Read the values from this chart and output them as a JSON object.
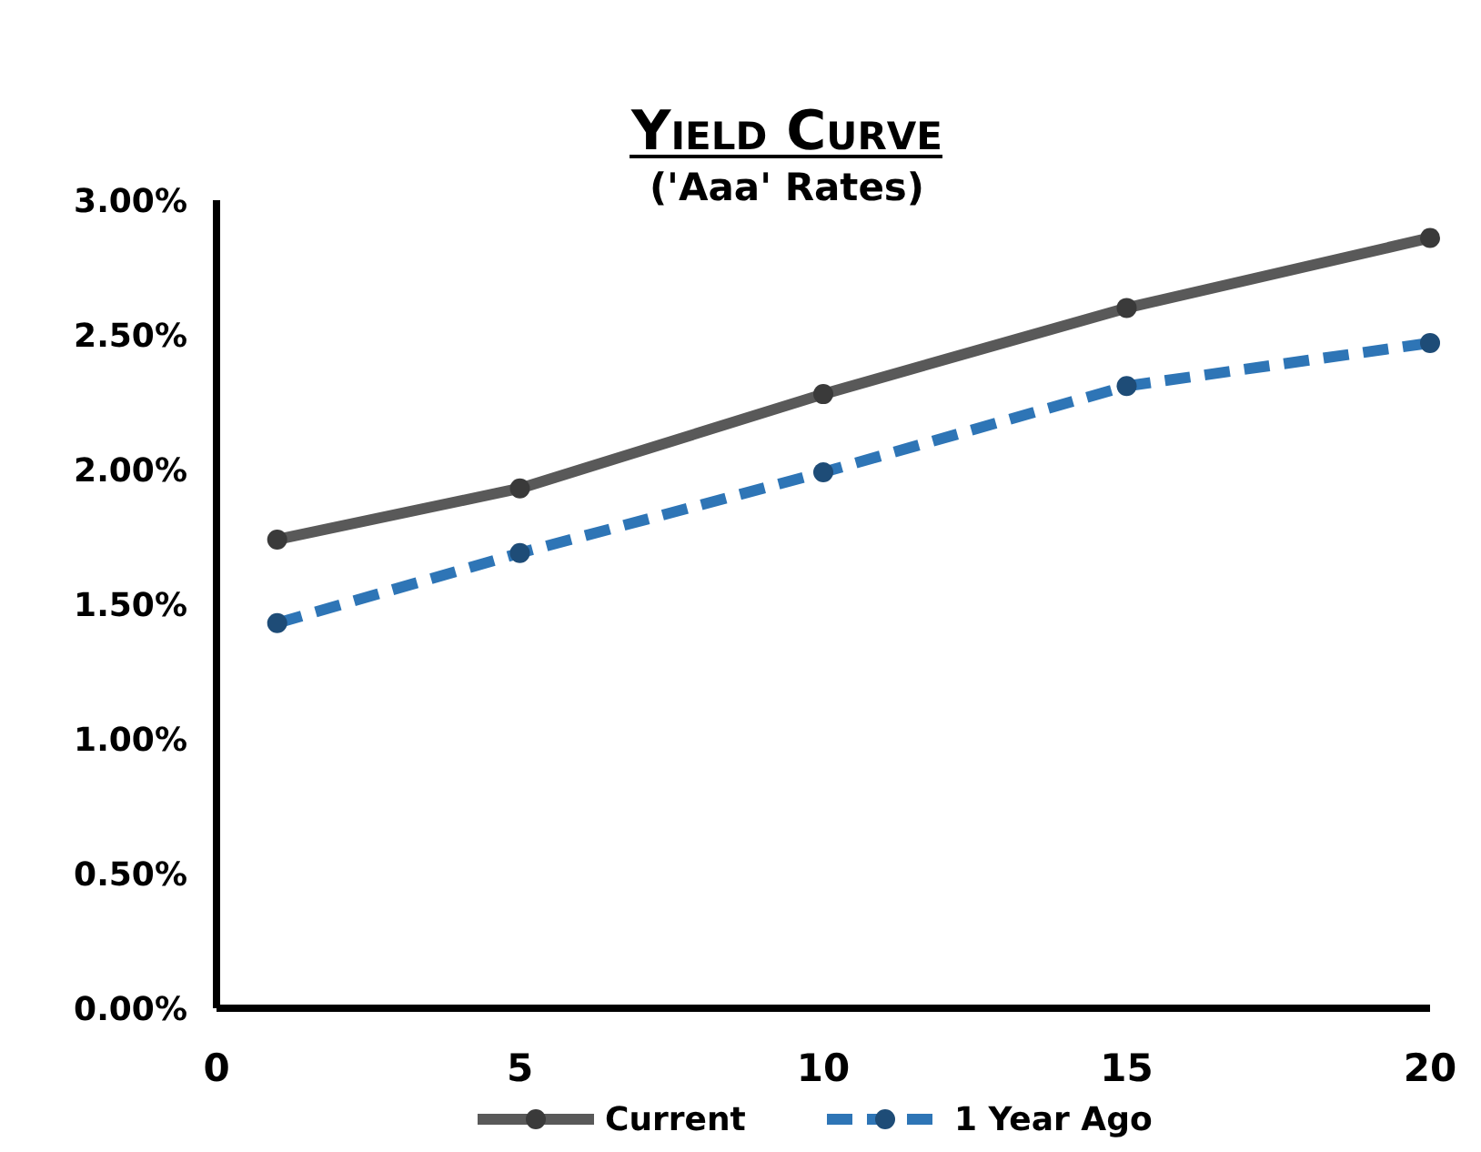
{
  "chart_data": {
    "type": "line",
    "title": "Yield Curve",
    "subtitle": "('Aaa' Rates)",
    "x": [
      1,
      5,
      10,
      15,
      20
    ],
    "series": [
      {
        "name": "Current",
        "color": "#595959",
        "values": [
          1.74,
          1.93,
          2.28,
          2.6,
          2.86
        ],
        "line_style": "solid"
      },
      {
        "name": "1 Year Ago",
        "color": "#2e75b6",
        "values": [
          1.43,
          1.69,
          1.99,
          2.31,
          2.47
        ],
        "line_style": "dashed"
      }
    ],
    "xlim": [
      0,
      20
    ],
    "xticks": [
      0,
      5,
      10,
      15,
      20
    ],
    "ylim": [
      0,
      3
    ],
    "yticks": [
      {
        "value": 0,
        "label": "0.00%"
      },
      {
        "value": 0.5,
        "label": "0.50%"
      },
      {
        "value": 1,
        "label": "1.00%"
      },
      {
        "value": 1.5,
        "label": "1.50%"
      },
      {
        "value": 2,
        "label": "2.00%"
      },
      {
        "value": 2.5,
        "label": "2.50%"
      },
      {
        "value": 3,
        "label": "3.00%"
      }
    ],
    "grid": false,
    "legend": "bottom",
    "marker": "circle"
  }
}
